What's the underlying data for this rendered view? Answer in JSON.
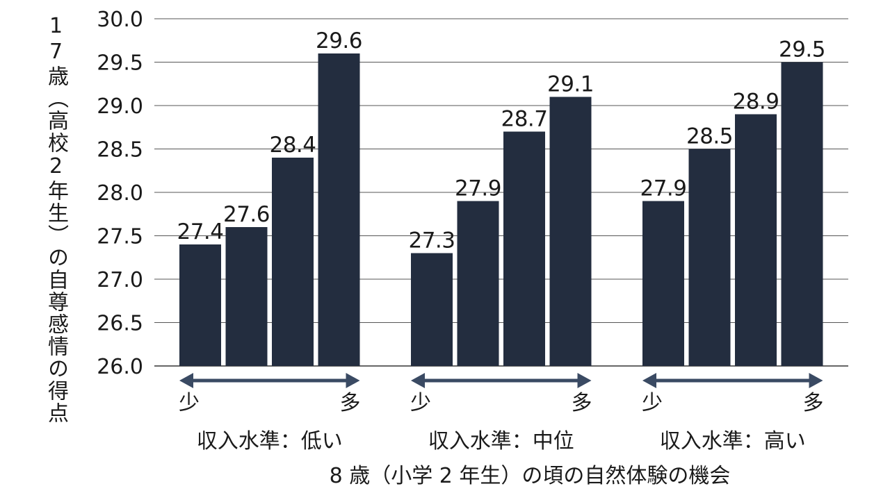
{
  "chart_data": {
    "type": "bar",
    "ylabel": "17歳（高校2年生）の自尊感情の得点",
    "xlabel": "8 歳（小学 2 年生）の頃の自然体験の機会",
    "ylim": [
      26.0,
      30.0
    ],
    "yticks": [
      "26.0",
      "26.5",
      "27.0",
      "27.5",
      "28.0",
      "28.5",
      "29.0",
      "29.5",
      "30.0"
    ],
    "grid": true,
    "colors": {
      "bar": "#232d3f",
      "arrow": "#3a4a63",
      "grid": "#555555",
      "text": "#1a1a1a"
    },
    "groups": [
      {
        "label": "収入水準：低い",
        "low_label": "少",
        "high_label": "多",
        "values": [
          27.4,
          27.6,
          28.4,
          29.6
        ],
        "labels": [
          "27.4",
          "27.6",
          "28.4",
          "29.6"
        ]
      },
      {
        "label": "収入水準：中位",
        "low_label": "少",
        "high_label": "多",
        "values": [
          27.3,
          27.9,
          28.7,
          29.1
        ],
        "labels": [
          "27.3",
          "27.9",
          "28.7",
          "29.1"
        ]
      },
      {
        "label": "収入水準：高い",
        "low_label": "少",
        "high_label": "多",
        "values": [
          27.9,
          28.5,
          28.9,
          29.5
        ],
        "labels": [
          "27.9",
          "28.5",
          "28.9",
          "29.5"
        ]
      }
    ]
  }
}
